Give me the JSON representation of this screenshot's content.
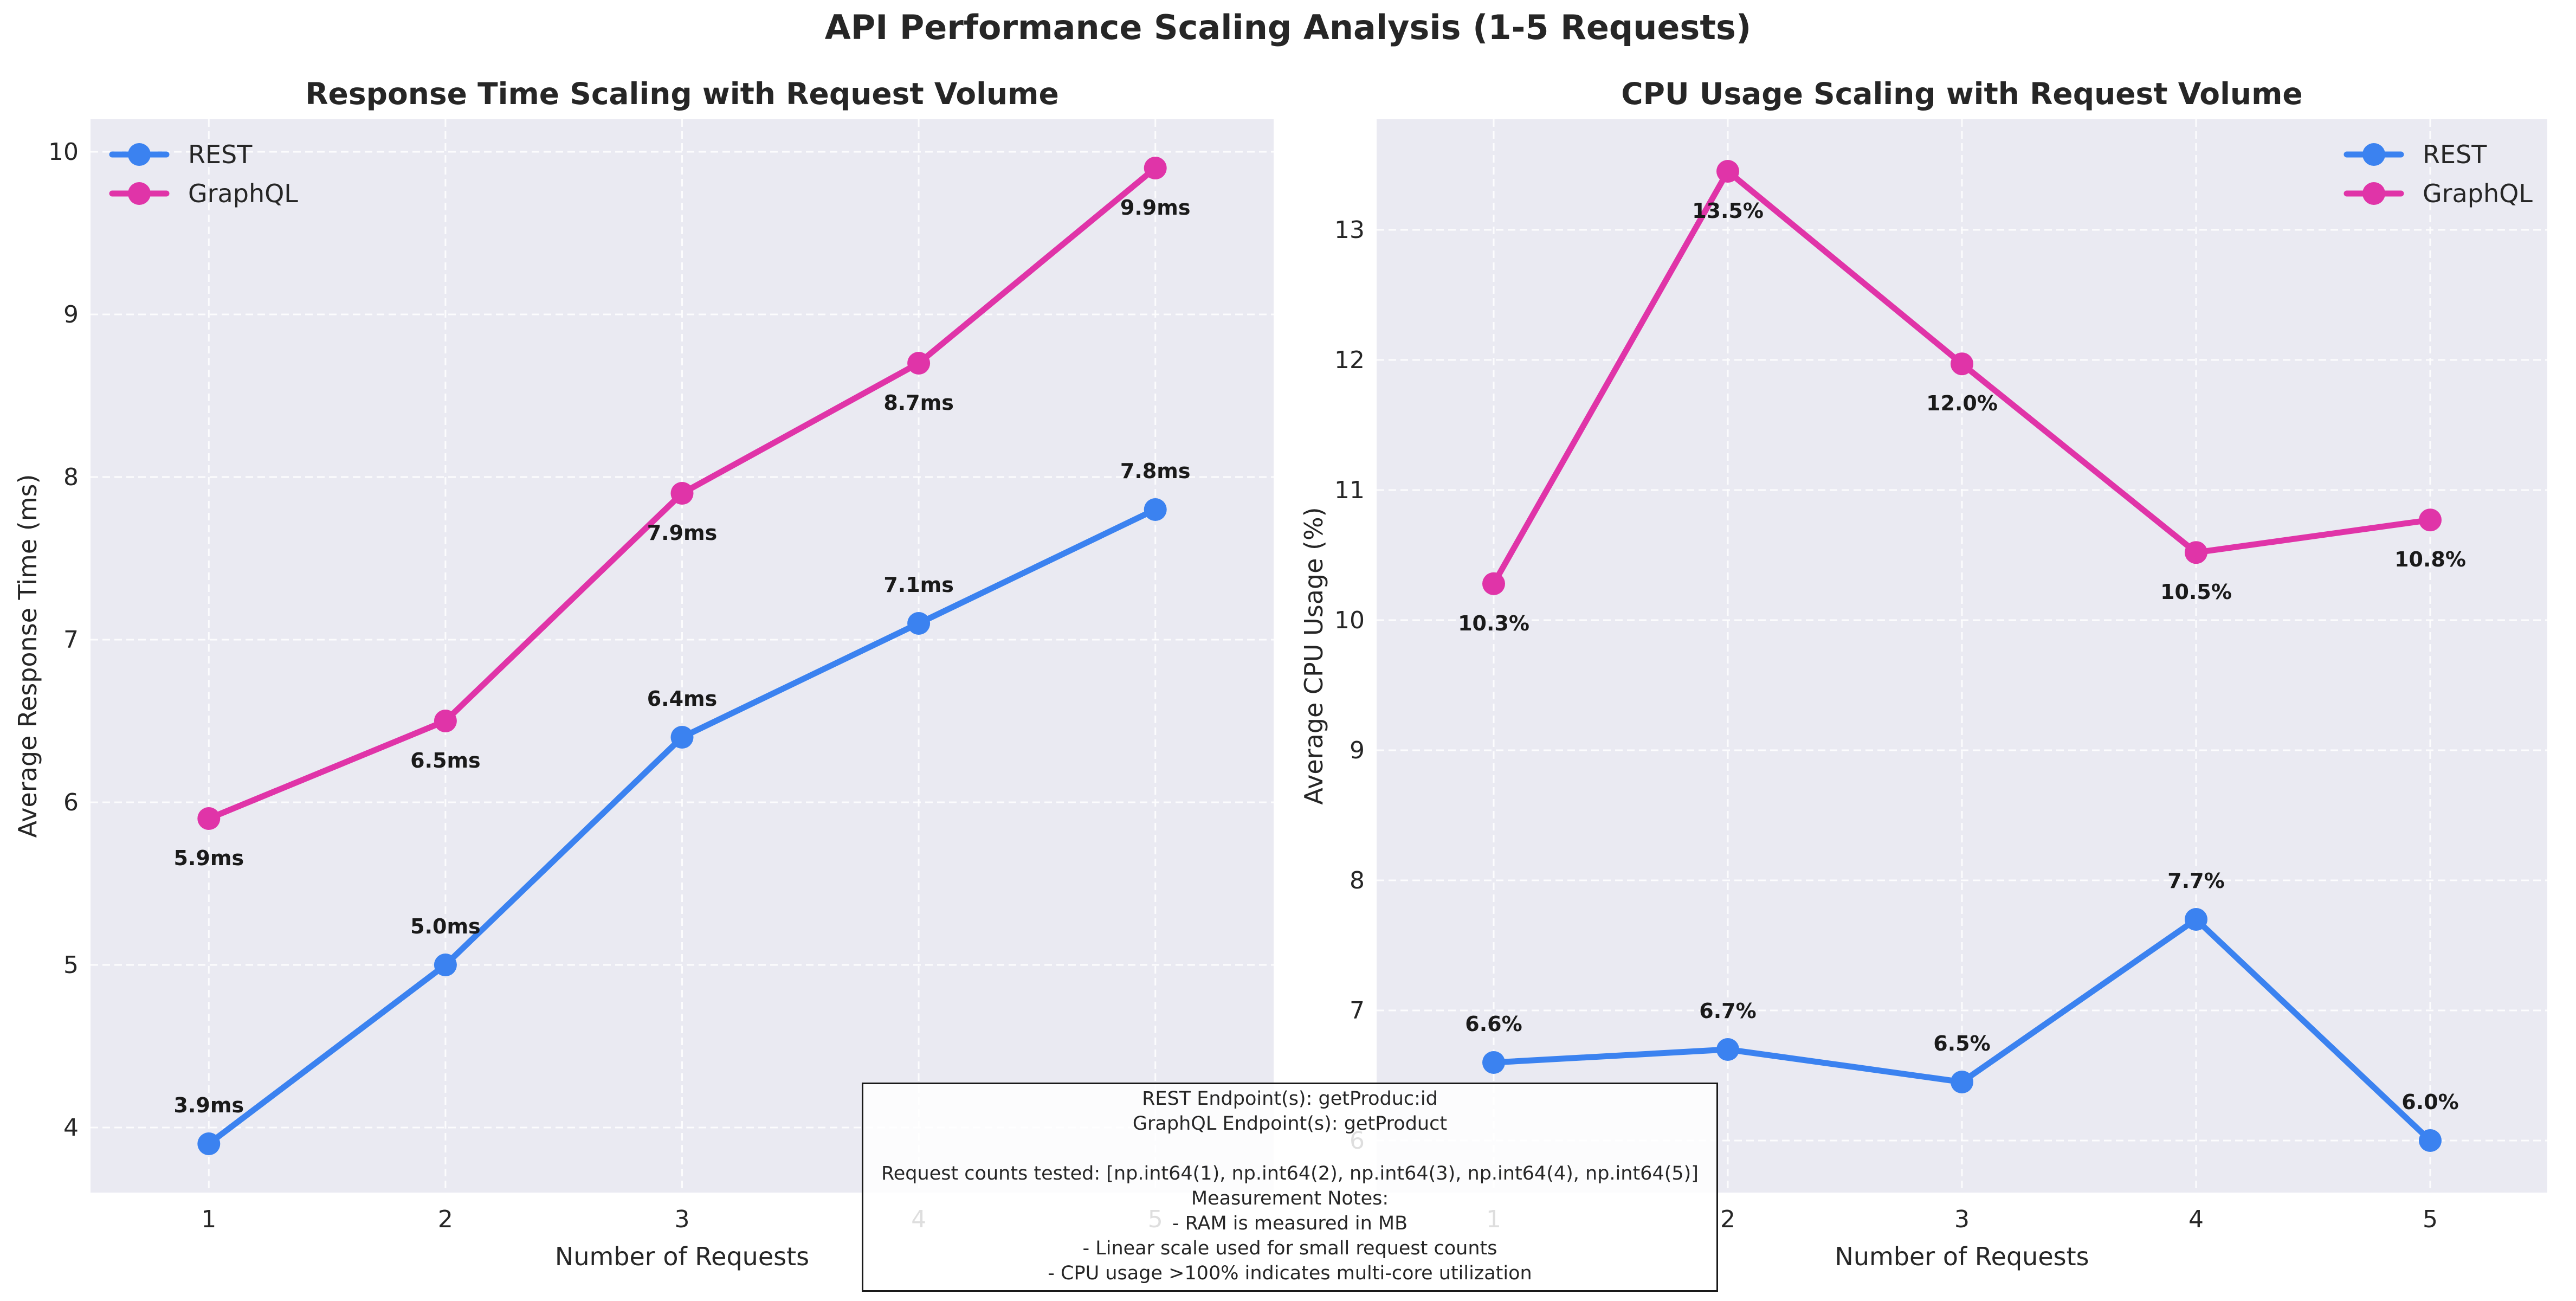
{
  "figure": {
    "title": "API Performance Scaling Analysis (1-5 Requests)"
  },
  "colors": {
    "rest": "#3b82f0",
    "graphql": "#e034a8",
    "plot_bg": "#eaeaf2",
    "grid": "#ffffff"
  },
  "chart_data": [
    {
      "type": "line",
      "title": "Response Time Scaling with Request Volume",
      "xlabel": "Number of Requests",
      "ylabel": "Average Response Time (ms)",
      "x": [
        1,
        2,
        3,
        4,
        5
      ],
      "xlim": [
        0.5,
        5.5
      ],
      "ylim": [
        3.6,
        10.2
      ],
      "yticks": [
        4,
        5,
        6,
        7,
        8,
        9,
        10
      ],
      "grid": true,
      "legend": "upper left",
      "series": [
        {
          "name": "REST",
          "key": "rest",
          "values": [
            3.9,
            5.0,
            6.4,
            7.1,
            7.8
          ],
          "labels": [
            "3.9ms",
            "5.0ms",
            "6.4ms",
            "7.1ms",
            "7.8ms"
          ],
          "label_pos": "above"
        },
        {
          "name": "GraphQL",
          "key": "graphql",
          "values": [
            5.9,
            6.5,
            7.9,
            8.7,
            9.9
          ],
          "labels": [
            "5.9ms",
            "6.5ms",
            "7.9ms",
            "8.7ms",
            "9.9ms"
          ],
          "label_pos": "below"
        }
      ]
    },
    {
      "type": "line",
      "title": "CPU Usage Scaling with Request Volume",
      "xlabel": "Number of Requests",
      "ylabel": "Average CPU Usage (%)",
      "x": [
        1,
        2,
        3,
        4,
        5
      ],
      "xlim": [
        0.5,
        5.5
      ],
      "ylim": [
        5.6,
        13.85
      ],
      "yticks": [
        6,
        7,
        8,
        9,
        10,
        11,
        12,
        13
      ],
      "grid": true,
      "legend": "upper right",
      "series": [
        {
          "name": "REST",
          "key": "rest",
          "values": [
            6.6,
            6.7,
            6.45,
            7.7,
            6.0
          ],
          "labels": [
            "6.6%",
            "6.7%",
            "6.5%",
            "7.7%",
            "6.0%"
          ],
          "label_pos": "above"
        },
        {
          "name": "GraphQL",
          "key": "graphql",
          "values": [
            10.28,
            13.45,
            11.97,
            10.52,
            10.77
          ],
          "labels": [
            "10.3%",
            "13.5%",
            "12.0%",
            "10.5%",
            "10.8%"
          ],
          "label_pos": "below"
        }
      ]
    }
  ],
  "notes": {
    "lines": [
      "REST Endpoint(s): getProduc:id",
      "GraphQL Endpoint(s): getProduct",
      "",
      "Request counts tested: [np.int64(1), np.int64(2), np.int64(3), np.int64(4), np.int64(5)]",
      "Measurement Notes:",
      "- RAM is measured in MB",
      "- Linear scale used for small request counts",
      "- CPU usage >100% indicates multi-core utilization"
    ]
  }
}
